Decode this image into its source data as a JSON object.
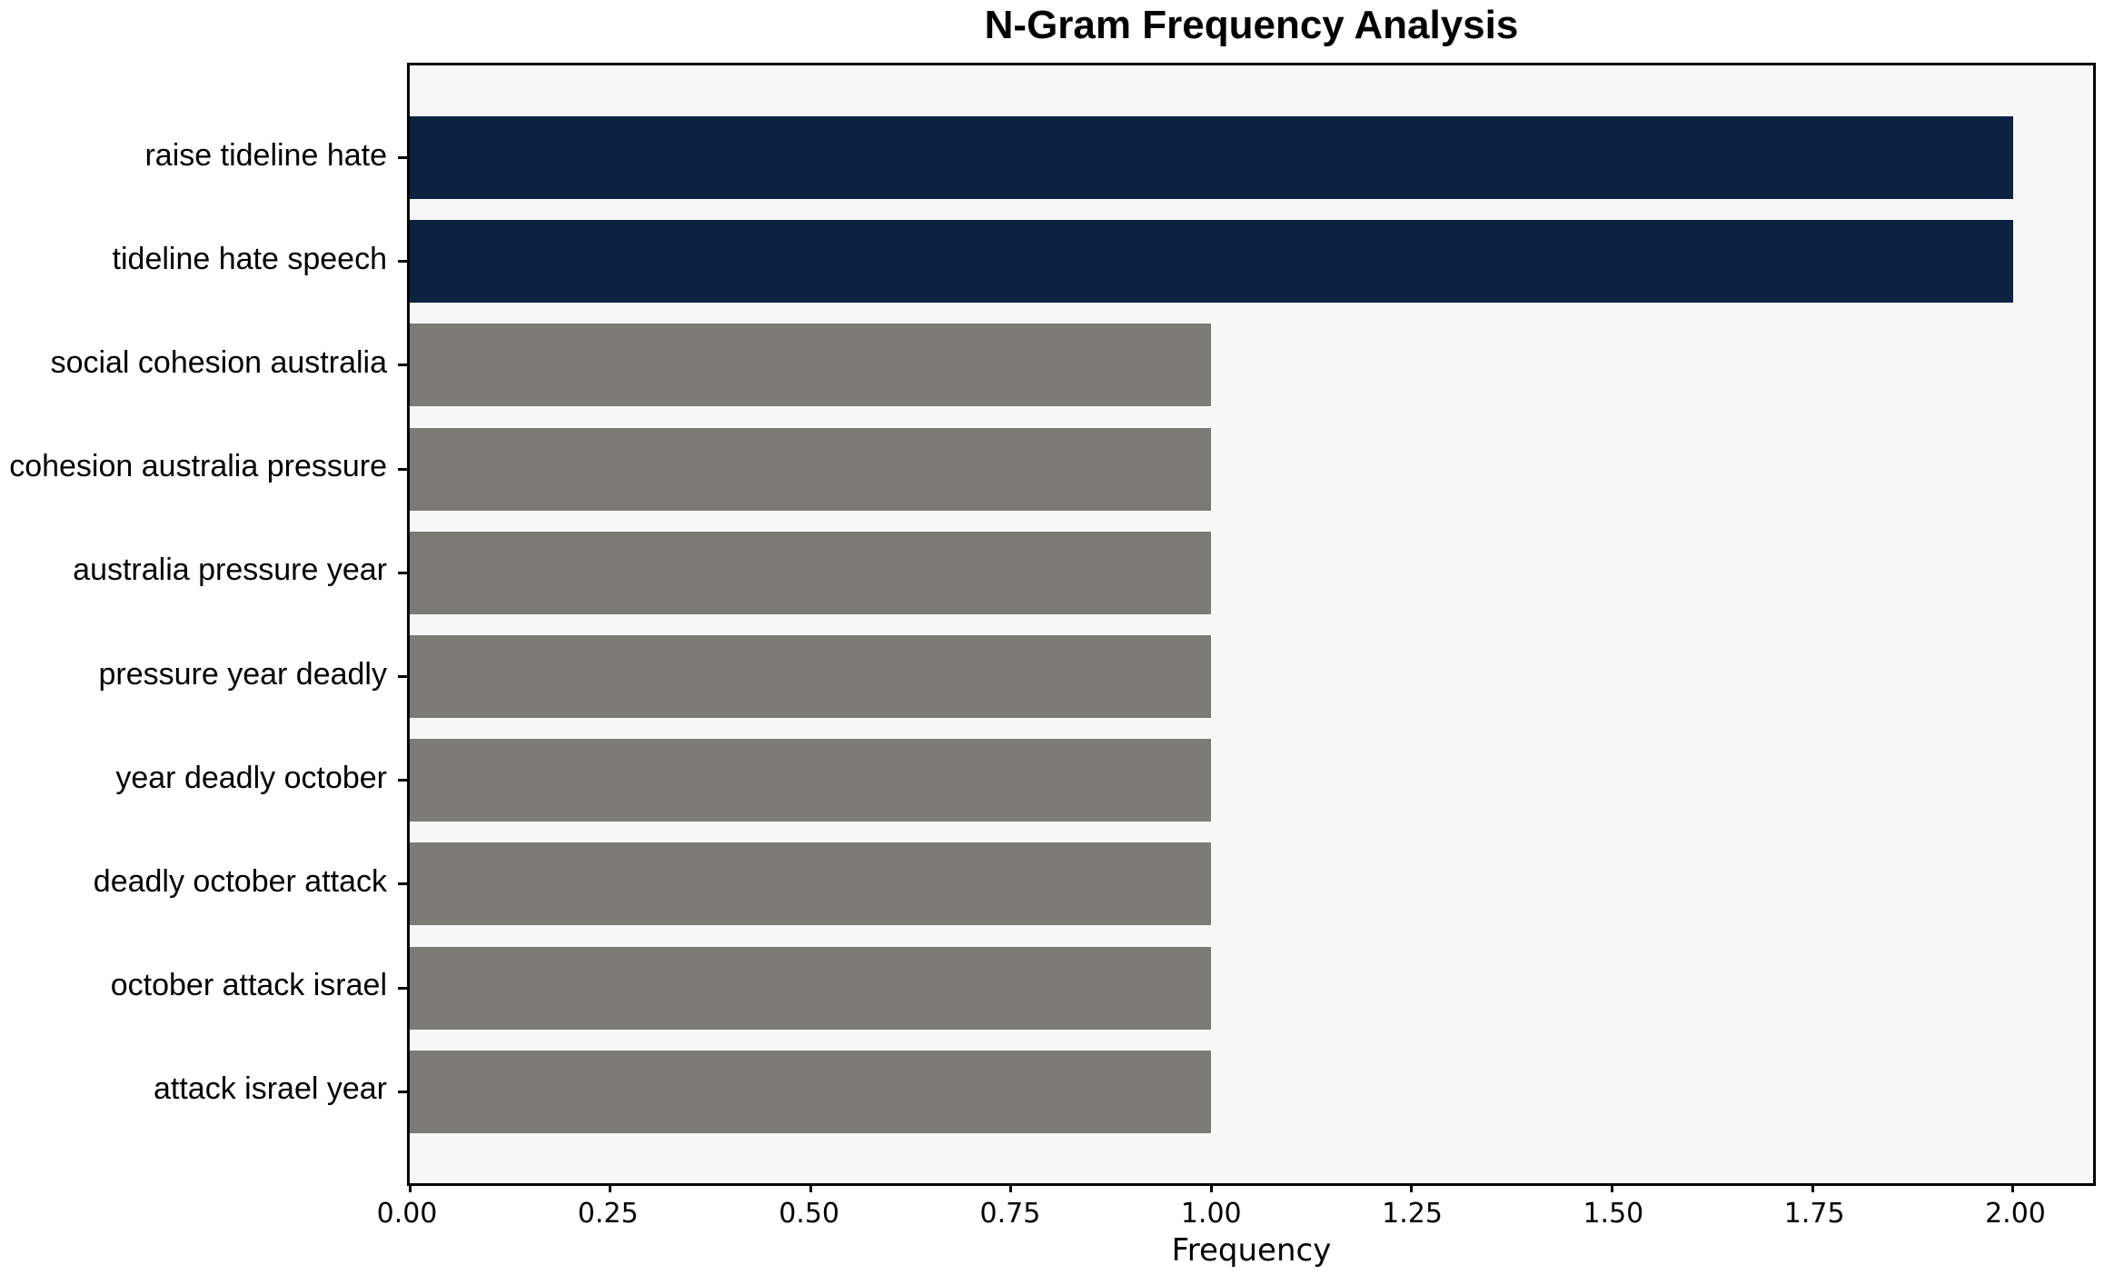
{
  "chart_data": {
    "type": "bar",
    "orientation": "horizontal",
    "title": "N-Gram Frequency Analysis",
    "xlabel": "Frequency",
    "ylabel": "",
    "categories": [
      "raise tideline hate",
      "tideline hate speech",
      "social cohesion australia",
      "cohesion australia pressure",
      "australia pressure year",
      "pressure year deadly",
      "year deadly october",
      "deadly october attack",
      "october attack israel",
      "attack israel year"
    ],
    "values": [
      2,
      2,
      1,
      1,
      1,
      1,
      1,
      1,
      1,
      1
    ],
    "bar_colors": [
      "#0d2240",
      "#0d2240",
      "#7b7a77",
      "#7b7a77",
      "#7b7a77",
      "#7b7a77",
      "#7b7a77",
      "#7b7a77",
      "#7b7a77",
      "#7b7a77"
    ],
    "xlim": [
      0,
      2.1
    ],
    "xticks": [
      "0.00",
      "0.25",
      "0.50",
      "0.75",
      "1.00",
      "1.25",
      "1.50",
      "1.75",
      "2.00"
    ],
    "xtick_values": [
      0,
      0.25,
      0.5,
      0.75,
      1.0,
      1.25,
      1.5,
      1.75,
      2.0
    ],
    "grid": false,
    "legend": false,
    "colors": {
      "highlight_bar": "#0d2240",
      "default_bar": "#7b7a77",
      "plot_background": "#f7f7f7",
      "figure_background": "#ffffff",
      "spine": "#000000",
      "text": "#000000"
    }
  }
}
